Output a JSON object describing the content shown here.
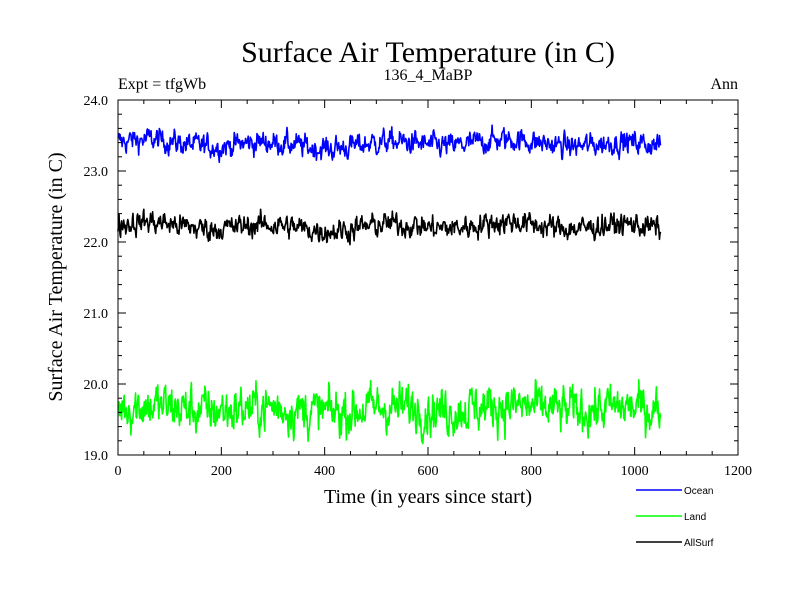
{
  "chart_data": {
    "type": "line",
    "title": "Surface Air Temperature (in C)",
    "subtitle": "136_4_MaBP",
    "left_note": "Expt = tfgWb",
    "right_note": "Ann",
    "xlabel": "Time (in years since start)",
    "ylabel": "Surface Air Temperature (in C)",
    "xlim": [
      0,
      1200
    ],
    "ylim": [
      19.0,
      24.0
    ],
    "x_ticks": [
      0,
      200,
      400,
      600,
      800,
      1000,
      1200
    ],
    "x_tick_labels": [
      "0",
      "200",
      "400",
      "600",
      "800",
      "1000",
      "1200"
    ],
    "y_ticks": [
      19.0,
      20.0,
      21.0,
      22.0,
      23.0,
      24.0
    ],
    "y_tick_labels": [
      "19.0",
      "20.0",
      "21.0",
      "22.0",
      "23.0",
      "24.0"
    ],
    "legend_position": "below-right",
    "x_range": [
      0,
      1050
    ],
    "series": [
      {
        "name": "Ocean",
        "color": "#0000ff",
        "mean": 23.38,
        "noise": 0.07,
        "low_freq": 0.04
      },
      {
        "name": "Land",
        "color": "#00ff00",
        "mean": 19.65,
        "noise": 0.14,
        "low_freq": 0.03
      },
      {
        "name": "AllSurf",
        "color": "#000000",
        "mean": 22.22,
        "noise": 0.07,
        "low_freq": 0.04
      }
    ]
  }
}
